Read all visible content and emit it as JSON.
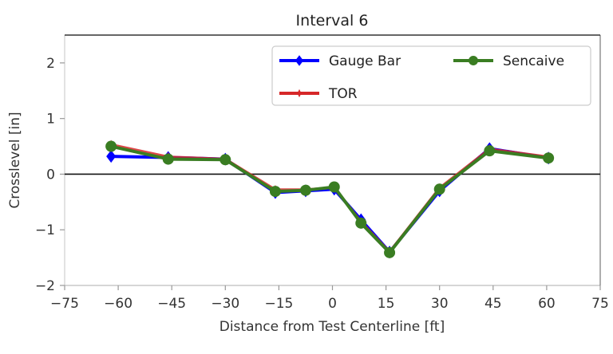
{
  "chart_data": {
    "type": "line",
    "title": "Interval 6",
    "xlabel": "Distance from Test Centerline [ft]",
    "ylabel": "Crosslevel [in]",
    "xlim": [
      -75,
      75
    ],
    "ylim": [
      -2,
      2.5
    ],
    "xticks": [
      -75,
      -60,
      -45,
      -30,
      -15,
      0,
      15,
      30,
      45,
      60,
      75
    ],
    "xtick_labels": [
      "−75",
      "−60",
      "−45",
      "−30",
      "−15",
      "0",
      "15",
      "30",
      "45",
      "60",
      "75"
    ],
    "yticks": [
      -2,
      -1,
      0,
      1,
      2
    ],
    "ytick_labels": [
      "−2",
      "−1",
      "0",
      "1",
      "2"
    ],
    "grid": false,
    "zero_line": true,
    "legend_position": "upper right",
    "legend_columns": 2,
    "x": [
      -62,
      -46,
      -30,
      -16,
      -7.5,
      0.5,
      8,
      16,
      30,
      44,
      60.5
    ],
    "series": [
      {
        "name": "Gauge Bar",
        "color": "#0000ff",
        "marker": "diamond",
        "values": [
          0.32,
          0.3,
          0.27,
          -0.33,
          -0.3,
          -0.27,
          -0.82,
          -1.4,
          -0.3,
          0.46,
          0.29
        ]
      },
      {
        "name": "TOR",
        "color": "#d62728",
        "marker": "star",
        "values": [
          0.53,
          0.31,
          0.27,
          -0.28,
          -0.28,
          -0.24,
          -0.86,
          -1.4,
          -0.25,
          0.45,
          0.31
        ]
      },
      {
        "name": "Sencaive",
        "color": "#3a7d22",
        "marker": "circle",
        "values": [
          0.5,
          0.27,
          0.26,
          -0.31,
          -0.29,
          -0.23,
          -0.88,
          -1.41,
          -0.27,
          0.42,
          0.29
        ]
      }
    ]
  }
}
